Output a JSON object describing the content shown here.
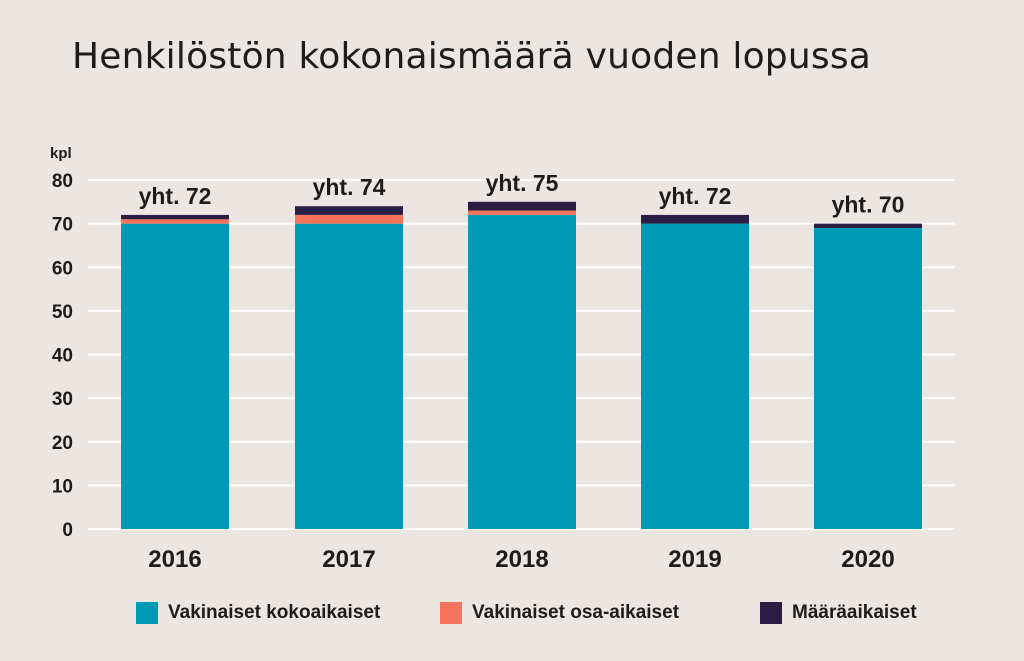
{
  "title": "Henkilöstön kokonaismäärä vuoden lopussa",
  "colors": {
    "background": "#ebe6e2",
    "vakinaiset_kokoaikaiset": "#009ab7",
    "vakinaiset_osa_aikaiset": "#f4735a",
    "maaraaikaiset": "#2a1e45",
    "text": "#1c1c1c",
    "grid": "#ffffff"
  },
  "chart_data": {
    "type": "bar",
    "stacked": true,
    "title": "Henkilöstön kokonaismäärä vuoden lopussa",
    "ylabel": "kpl",
    "xlabel": "",
    "ylim": [
      0,
      80
    ],
    "yticks": [
      0,
      10,
      20,
      30,
      40,
      50,
      60,
      70,
      80
    ],
    "grid": true,
    "legend_position": "bottom",
    "categories": [
      "2016",
      "2017",
      "2018",
      "2019",
      "2020"
    ],
    "series": [
      {
        "name": "Vakinaiset kokoaikaiset",
        "values": [
          70,
          70,
          72,
          70,
          69
        ]
      },
      {
        "name": "Vakinaiset osa-aikaiset",
        "values": [
          1,
          2,
          1,
          0,
          0
        ]
      },
      {
        "name": "Määräaikaiset",
        "values": [
          1,
          2,
          2,
          2,
          1
        ]
      }
    ],
    "totals": [
      "yht. 72",
      "yht. 74",
      "yht. 75",
      "yht. 72",
      "yht. 70"
    ]
  }
}
